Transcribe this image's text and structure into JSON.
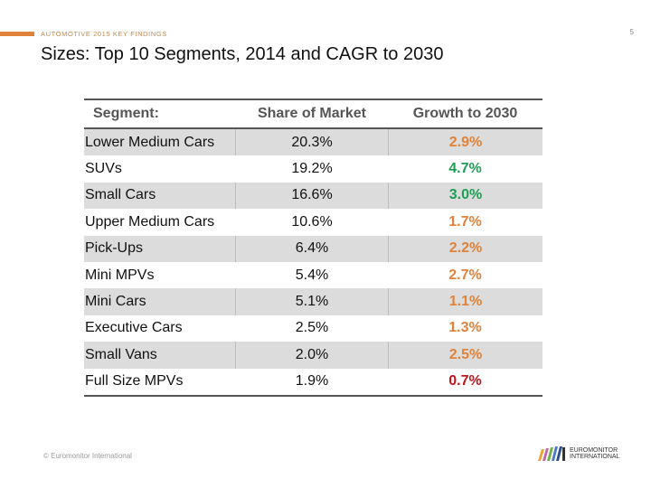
{
  "header": {
    "kicker": "AUTOMOTIVE 2015 KEY FINDINGS",
    "page_number": "5",
    "title": "Sizes: Top 10 Segments, 2014 and CAGR to 2030",
    "accent_color": "#E0823A"
  },
  "table": {
    "columns": [
      "Segment:",
      "Share of Market",
      "Growth to 2030"
    ],
    "rows": [
      {
        "segment": "Lower Medium Cars",
        "share": "20.3%",
        "growth": "2.9%",
        "growth_color": "#E0823A"
      },
      {
        "segment": "SUVs",
        "share": "19.2%",
        "growth": "4.7%",
        "growth_color": "#1E9E55"
      },
      {
        "segment": "Small Cars",
        "share": "16.6%",
        "growth": "3.0%",
        "growth_color": "#1E9E55"
      },
      {
        "segment": "Upper Medium Cars",
        "share": "10.6%",
        "growth": "1.7%",
        "growth_color": "#E0823A"
      },
      {
        "segment": "Pick-Ups",
        "share": "6.4%",
        "growth": "2.2%",
        "growth_color": "#E0823A"
      },
      {
        "segment": "Mini MPVs",
        "share": "5.4%",
        "growth": "2.7%",
        "growth_color": "#E0823A"
      },
      {
        "segment": "Mini Cars",
        "share": "5.1%",
        "growth": "1.1%",
        "growth_color": "#E0823A"
      },
      {
        "segment": "Executive Cars",
        "share": "2.5%",
        "growth": "1.3%",
        "growth_color": "#E0823A"
      },
      {
        "segment": "Small Vans",
        "share": "2.0%",
        "growth": "2.5%",
        "growth_color": "#E0823A"
      },
      {
        "segment": "Full Size MPVs",
        "share": "1.9%",
        "growth": "0.7%",
        "growth_color": "#C0141C"
      }
    ]
  },
  "footer": {
    "copyright": "© Euromonitor International",
    "logo_line1": "EUROMONITOR",
    "logo_line2": "INTERNATIONAL",
    "logo_icon": "euromonitor-logo-stripes"
  }
}
